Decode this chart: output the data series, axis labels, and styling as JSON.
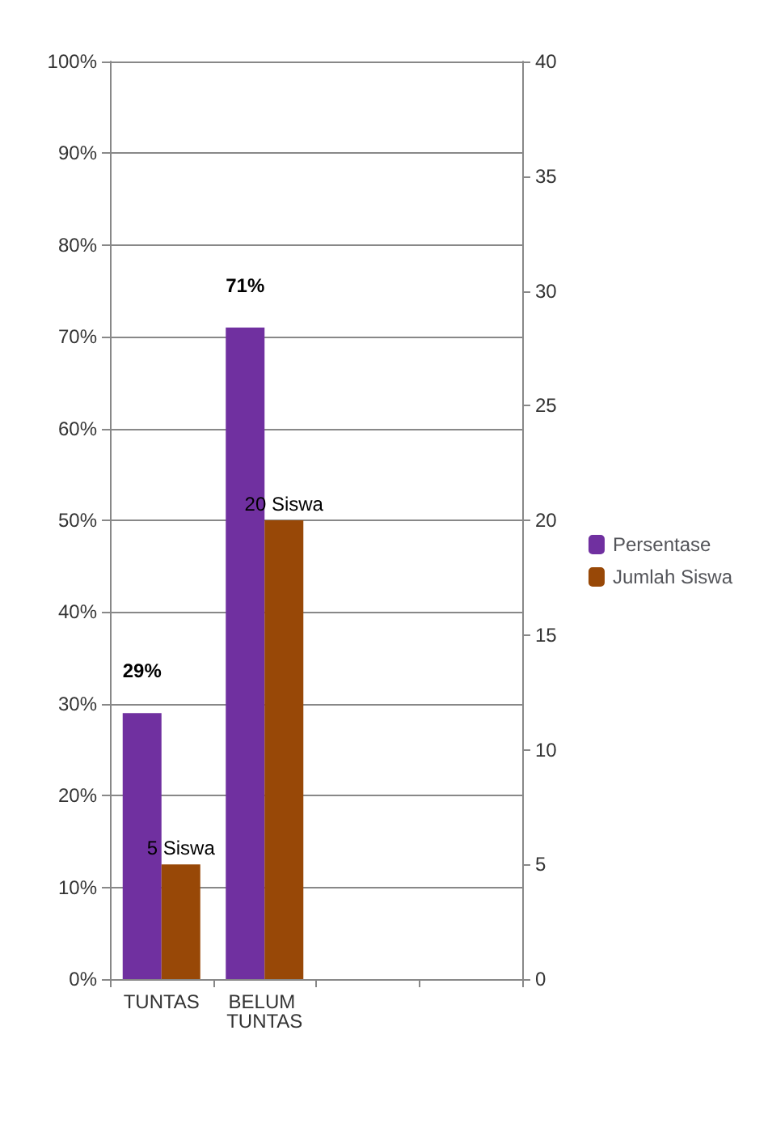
{
  "chart_data": {
    "type": "bar",
    "categories": [
      "TUNTAS",
      "BELUM TUNTAS",
      null,
      null
    ],
    "series": [
      {
        "name": "Persentase",
        "color": "#7030a0",
        "values": [
          29,
          71,
          null,
          null
        ],
        "value_labels": [
          "29%",
          "71%",
          null,
          null
        ]
      },
      {
        "name": "Jumlah Siswa",
        "color": "#984807",
        "axis": "y2",
        "values": [
          5,
          20,
          null,
          null
        ],
        "value_labels": [
          "5 Siswa",
          "20 Siswa",
          null,
          null
        ]
      }
    ],
    "ylim": [
      0,
      100
    ],
    "yticks": [
      {
        "value": 0,
        "label": "0%"
      },
      {
        "value": 10,
        "label": "10%"
      },
      {
        "value": 20,
        "label": "20%"
      },
      {
        "value": 30,
        "label": "30%"
      },
      {
        "value": 40,
        "label": "40%"
      },
      {
        "value": 50,
        "label": "50%"
      },
      {
        "value": 60,
        "label": "60%"
      },
      {
        "value": 70,
        "label": "70%"
      },
      {
        "value": 80,
        "label": "80%"
      },
      {
        "value": 90,
        "label": "90%"
      },
      {
        "value": 100,
        "label": "100%"
      }
    ],
    "y2lim": [
      0,
      40
    ],
    "y2ticks": [
      0,
      5,
      10,
      15,
      20,
      25,
      30,
      35,
      40
    ],
    "grid": "y",
    "legend": "right"
  }
}
